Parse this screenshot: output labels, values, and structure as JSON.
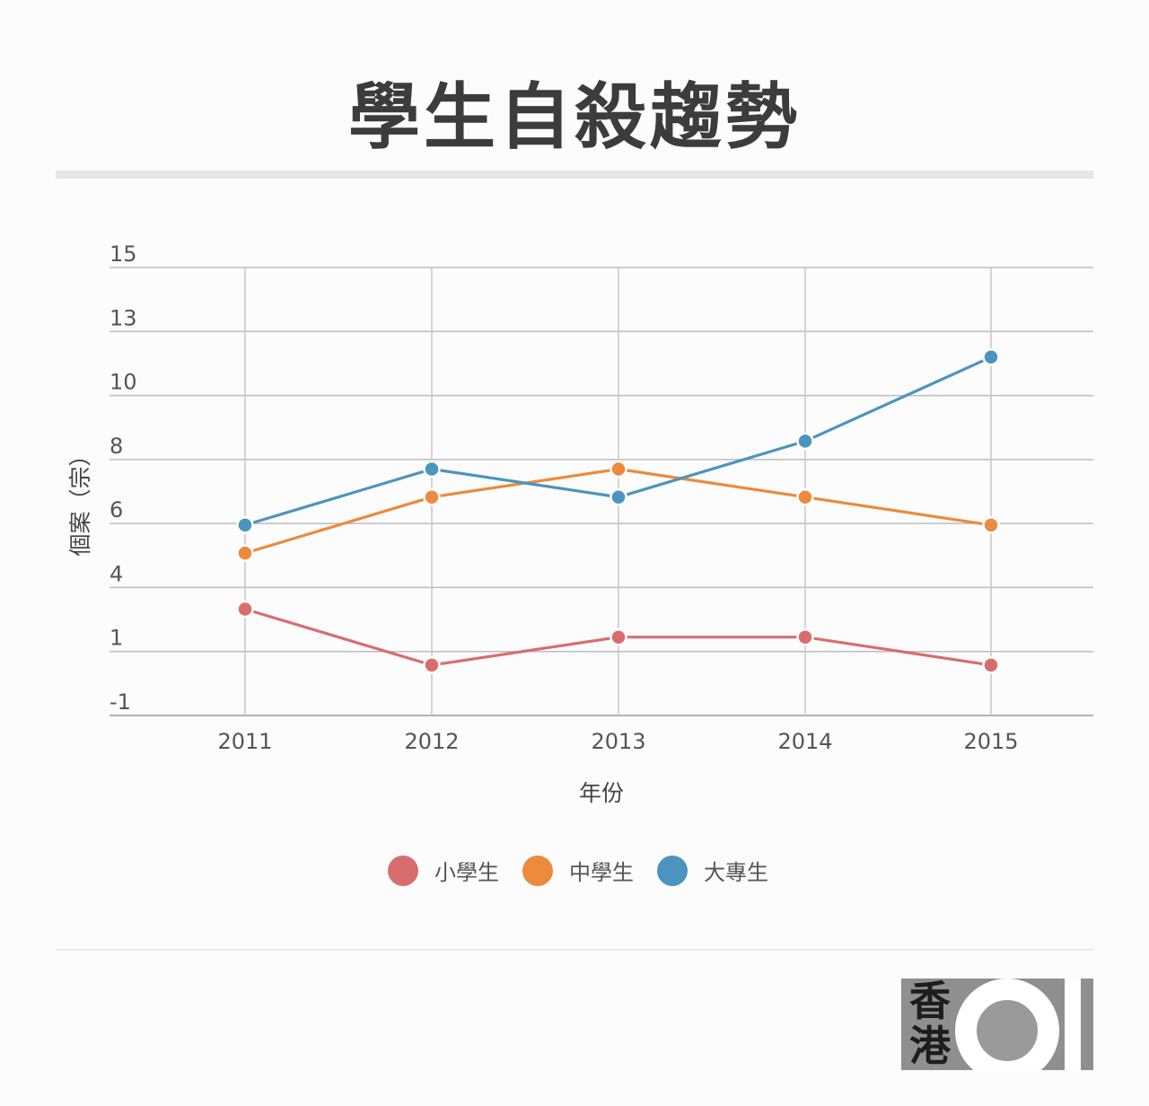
{
  "chart_data": {
    "type": "line",
    "title": "學生自殺趨勢",
    "xlabel": "年份",
    "ylabel": "個案（宗）",
    "categories": [
      "2011",
      "2012",
      "2013",
      "2014",
      "2015"
    ],
    "y_tick_labels": [
      "15",
      "13",
      "10",
      "8",
      "6",
      "4",
      "1",
      "-1"
    ],
    "y_tick_values": [
      15,
      13,
      10,
      8,
      6,
      4,
      1,
      -1
    ],
    "ylim": [
      -1,
      15
    ],
    "grid": true,
    "legend_position": "bottom",
    "series": [
      {
        "name": "小學生",
        "color": "#d86d6e",
        "values": [
          2.8,
          0.8,
          1.8,
          1.8,
          0.8
        ]
      },
      {
        "name": "中學生",
        "color": "#ec8a3d",
        "values": [
          4.8,
          6.8,
          7.8,
          6.8,
          5.8
        ]
      },
      {
        "name": "大專生",
        "color": "#4b94bf",
        "values": [
          5.8,
          7.8,
          6.8,
          8.8,
          11.8
        ]
      }
    ]
  },
  "logo": {
    "text": "香港",
    "number": "01"
  }
}
